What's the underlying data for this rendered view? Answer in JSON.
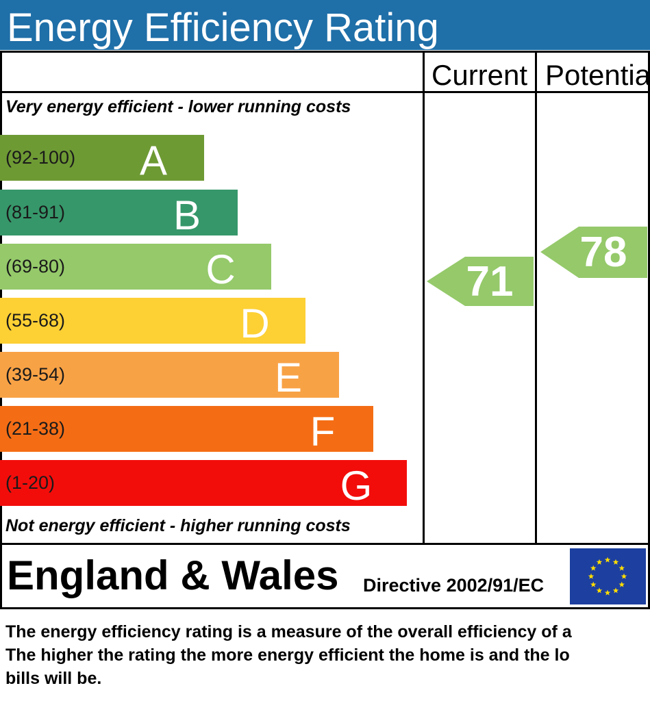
{
  "title": "Energy Efficiency Rating",
  "columns": {
    "current": "Current",
    "potential": "Potential"
  },
  "top_note": "Very energy efficient - lower running costs",
  "bottom_note": "Not energy efficient - higher running costs",
  "bands": [
    {
      "range": "(92-100)",
      "letter": "A",
      "color": "#6e9a34"
    },
    {
      "range": "(81-91)",
      "letter": "B",
      "color": "#36976a"
    },
    {
      "range": "(69-80)",
      "letter": "C",
      "color": "#95c96a"
    },
    {
      "range": "(55-68)",
      "letter": "D",
      "color": "#fdd034"
    },
    {
      "range": "(39-54)",
      "letter": "E",
      "color": "#f8a246"
    },
    {
      "range": "(21-38)",
      "letter": "F",
      "color": "#f46d15"
    },
    {
      "range": "(1-20)",
      "letter": "G",
      "color": "#f20d0b"
    }
  ],
  "current_rating": {
    "value": "71",
    "color": "#95c96a"
  },
  "potential_rating": {
    "value": "78",
    "color": "#95c96a"
  },
  "footer": {
    "region": "England & Wales",
    "directive": "Directive 2002/91/EC"
  },
  "description": [
    "The energy efficiency rating is a measure of the overall efficiency of a",
    "The higher the rating the more energy efficient the home is and the lo",
    "bills will be."
  ]
}
